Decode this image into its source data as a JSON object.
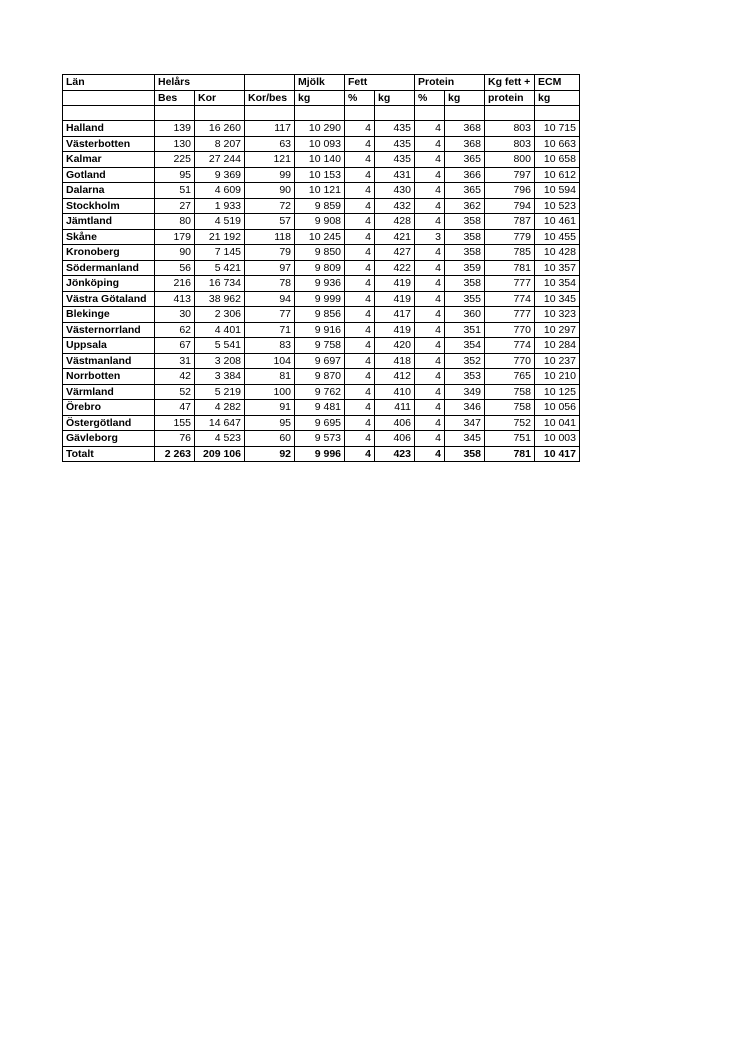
{
  "table": {
    "header_row1": {
      "lan": "Län",
      "helars": "Helårs",
      "mjolk": "Mjölk",
      "fett": "Fett",
      "protein": "Protein",
      "kgfett": "Kg fett +",
      "ecm": "ECM"
    },
    "header_row2": {
      "bes": "Bes",
      "kor": "Kor",
      "korbes": "Kor/bes",
      "kg1": "kg",
      "pct1": "%",
      "kg2": "kg",
      "pct2": "%",
      "kg3": "kg",
      "protein": "protein",
      "kg4": "kg"
    },
    "rows": [
      {
        "lan": "Halland",
        "bes": "139",
        "kor": "16 260",
        "korbes": "117",
        "mjolk": "10 290",
        "fettp": "4",
        "fettkg": "435",
        "protp": "4",
        "protkg": "368",
        "kgfp": "803",
        "ecm": "10 715"
      },
      {
        "lan": "Västerbotten",
        "bes": "130",
        "kor": "8 207",
        "korbes": "63",
        "mjolk": "10 093",
        "fettp": "4",
        "fettkg": "435",
        "protp": "4",
        "protkg": "368",
        "kgfp": "803",
        "ecm": "10 663"
      },
      {
        "lan": "Kalmar",
        "bes": "225",
        "kor": "27 244",
        "korbes": "121",
        "mjolk": "10 140",
        "fettp": "4",
        "fettkg": "435",
        "protp": "4",
        "protkg": "365",
        "kgfp": "800",
        "ecm": "10 658"
      },
      {
        "lan": "Gotland",
        "bes": "95",
        "kor": "9 369",
        "korbes": "99",
        "mjolk": "10 153",
        "fettp": "4",
        "fettkg": "431",
        "protp": "4",
        "protkg": "366",
        "kgfp": "797",
        "ecm": "10 612"
      },
      {
        "lan": "Dalarna",
        "bes": "51",
        "kor": "4 609",
        "korbes": "90",
        "mjolk": "10 121",
        "fettp": "4",
        "fettkg": "430",
        "protp": "4",
        "protkg": "365",
        "kgfp": "796",
        "ecm": "10 594"
      },
      {
        "lan": "Stockholm",
        "bes": "27",
        "kor": "1 933",
        "korbes": "72",
        "mjolk": "9 859",
        "fettp": "4",
        "fettkg": "432",
        "protp": "4",
        "protkg": "362",
        "kgfp": "794",
        "ecm": "10 523"
      },
      {
        "lan": "Jämtland",
        "bes": "80",
        "kor": "4 519",
        "korbes": "57",
        "mjolk": "9 908",
        "fettp": "4",
        "fettkg": "428",
        "protp": "4",
        "protkg": "358",
        "kgfp": "787",
        "ecm": "10 461"
      },
      {
        "lan": "Skåne",
        "bes": "179",
        "kor": "21 192",
        "korbes": "118",
        "mjolk": "10 245",
        "fettp": "4",
        "fettkg": "421",
        "protp": "3",
        "protkg": "358",
        "kgfp": "779",
        "ecm": "10 455"
      },
      {
        "lan": "Kronoberg",
        "bes": "90",
        "kor": "7 145",
        "korbes": "79",
        "mjolk": "9 850",
        "fettp": "4",
        "fettkg": "427",
        "protp": "4",
        "protkg": "358",
        "kgfp": "785",
        "ecm": "10 428"
      },
      {
        "lan": "Södermanland",
        "bes": "56",
        "kor": "5 421",
        "korbes": "97",
        "mjolk": "9 809",
        "fettp": "4",
        "fettkg": "422",
        "protp": "4",
        "protkg": "359",
        "kgfp": "781",
        "ecm": "10 357"
      },
      {
        "lan": "Jönköping",
        "bes": "216",
        "kor": "16 734",
        "korbes": "78",
        "mjolk": "9 936",
        "fettp": "4",
        "fettkg": "419",
        "protp": "4",
        "protkg": "358",
        "kgfp": "777",
        "ecm": "10 354"
      },
      {
        "lan": "Västra Götaland",
        "bes": "413",
        "kor": "38 962",
        "korbes": "94",
        "mjolk": "9 999",
        "fettp": "4",
        "fettkg": "419",
        "protp": "4",
        "protkg": "355",
        "kgfp": "774",
        "ecm": "10 345"
      },
      {
        "lan": "Blekinge",
        "bes": "30",
        "kor": "2 306",
        "korbes": "77",
        "mjolk": "9 856",
        "fettp": "4",
        "fettkg": "417",
        "protp": "4",
        "protkg": "360",
        "kgfp": "777",
        "ecm": "10 323"
      },
      {
        "lan": "Västernorrland",
        "bes": "62",
        "kor": "4 401",
        "korbes": "71",
        "mjolk": "9 916",
        "fettp": "4",
        "fettkg": "419",
        "protp": "4",
        "protkg": "351",
        "kgfp": "770",
        "ecm": "10 297"
      },
      {
        "lan": "Uppsala",
        "bes": "67",
        "kor": "5 541",
        "korbes": "83",
        "mjolk": "9 758",
        "fettp": "4",
        "fettkg": "420",
        "protp": "4",
        "protkg": "354",
        "kgfp": "774",
        "ecm": "10 284"
      },
      {
        "lan": "Västmanland",
        "bes": "31",
        "kor": "3 208",
        "korbes": "104",
        "mjolk": "9 697",
        "fettp": "4",
        "fettkg": "418",
        "protp": "4",
        "protkg": "352",
        "kgfp": "770",
        "ecm": "10 237"
      },
      {
        "lan": "Norrbotten",
        "bes": "42",
        "kor": "3 384",
        "korbes": "81",
        "mjolk": "9 870",
        "fettp": "4",
        "fettkg": "412",
        "protp": "4",
        "protkg": "353",
        "kgfp": "765",
        "ecm": "10 210"
      },
      {
        "lan": "Värmland",
        "bes": "52",
        "kor": "5 219",
        "korbes": "100",
        "mjolk": "9 762",
        "fettp": "4",
        "fettkg": "410",
        "protp": "4",
        "protkg": "349",
        "kgfp": "758",
        "ecm": "10 125"
      },
      {
        "lan": "Örebro",
        "bes": "47",
        "kor": "4 282",
        "korbes": "91",
        "mjolk": "9 481",
        "fettp": "4",
        "fettkg": "411",
        "protp": "4",
        "protkg": "346",
        "kgfp": "758",
        "ecm": "10 056"
      },
      {
        "lan": "Östergötland",
        "bes": "155",
        "kor": "14 647",
        "korbes": "95",
        "mjolk": "9 695",
        "fettp": "4",
        "fettkg": "406",
        "protp": "4",
        "protkg": "347",
        "kgfp": "752",
        "ecm": "10 041"
      },
      {
        "lan": "Gävleborg",
        "bes": "76",
        "kor": "4 523",
        "korbes": "60",
        "mjolk": "9 573",
        "fettp": "4",
        "fettkg": "406",
        "protp": "4",
        "protkg": "345",
        "kgfp": "751",
        "ecm": "10 003"
      }
    ],
    "total": {
      "lan": "Totalt",
      "bes": "2 263",
      "kor": "209 106",
      "korbes": "92",
      "mjolk": "9 996",
      "fettp": "4",
      "fettkg": "423",
      "protp": "4",
      "protkg": "358",
      "kgfp": "781",
      "ecm": "10 417"
    }
  }
}
